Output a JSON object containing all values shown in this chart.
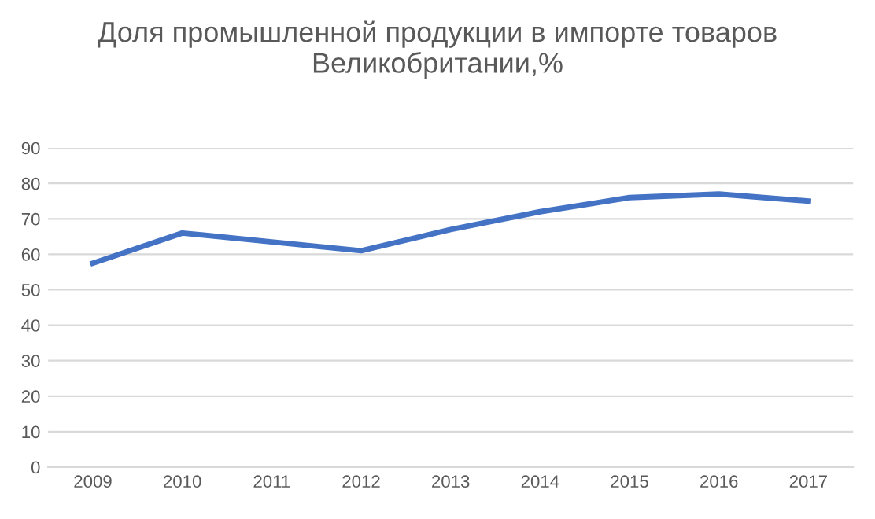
{
  "chart_data": {
    "type": "line",
    "title": "Доля промышленной продукции в импорте товаров Великобритании,%",
    "categories": [
      "2009",
      "2010",
      "2011",
      "2012",
      "2013",
      "2014",
      "2015",
      "2016",
      "2017"
    ],
    "series": [
      {
        "color": "#4472c4",
        "values": [
          57.5,
          66,
          63.5,
          61,
          67,
          72,
          76,
          77,
          75
        ]
      }
    ],
    "ylim": [
      0,
      90
    ],
    "yticks": [
      0,
      10,
      20,
      30,
      40,
      50,
      60,
      70,
      80,
      90
    ],
    "grid": "y",
    "legend": false,
    "marker": "none",
    "line_style": "solid"
  }
}
